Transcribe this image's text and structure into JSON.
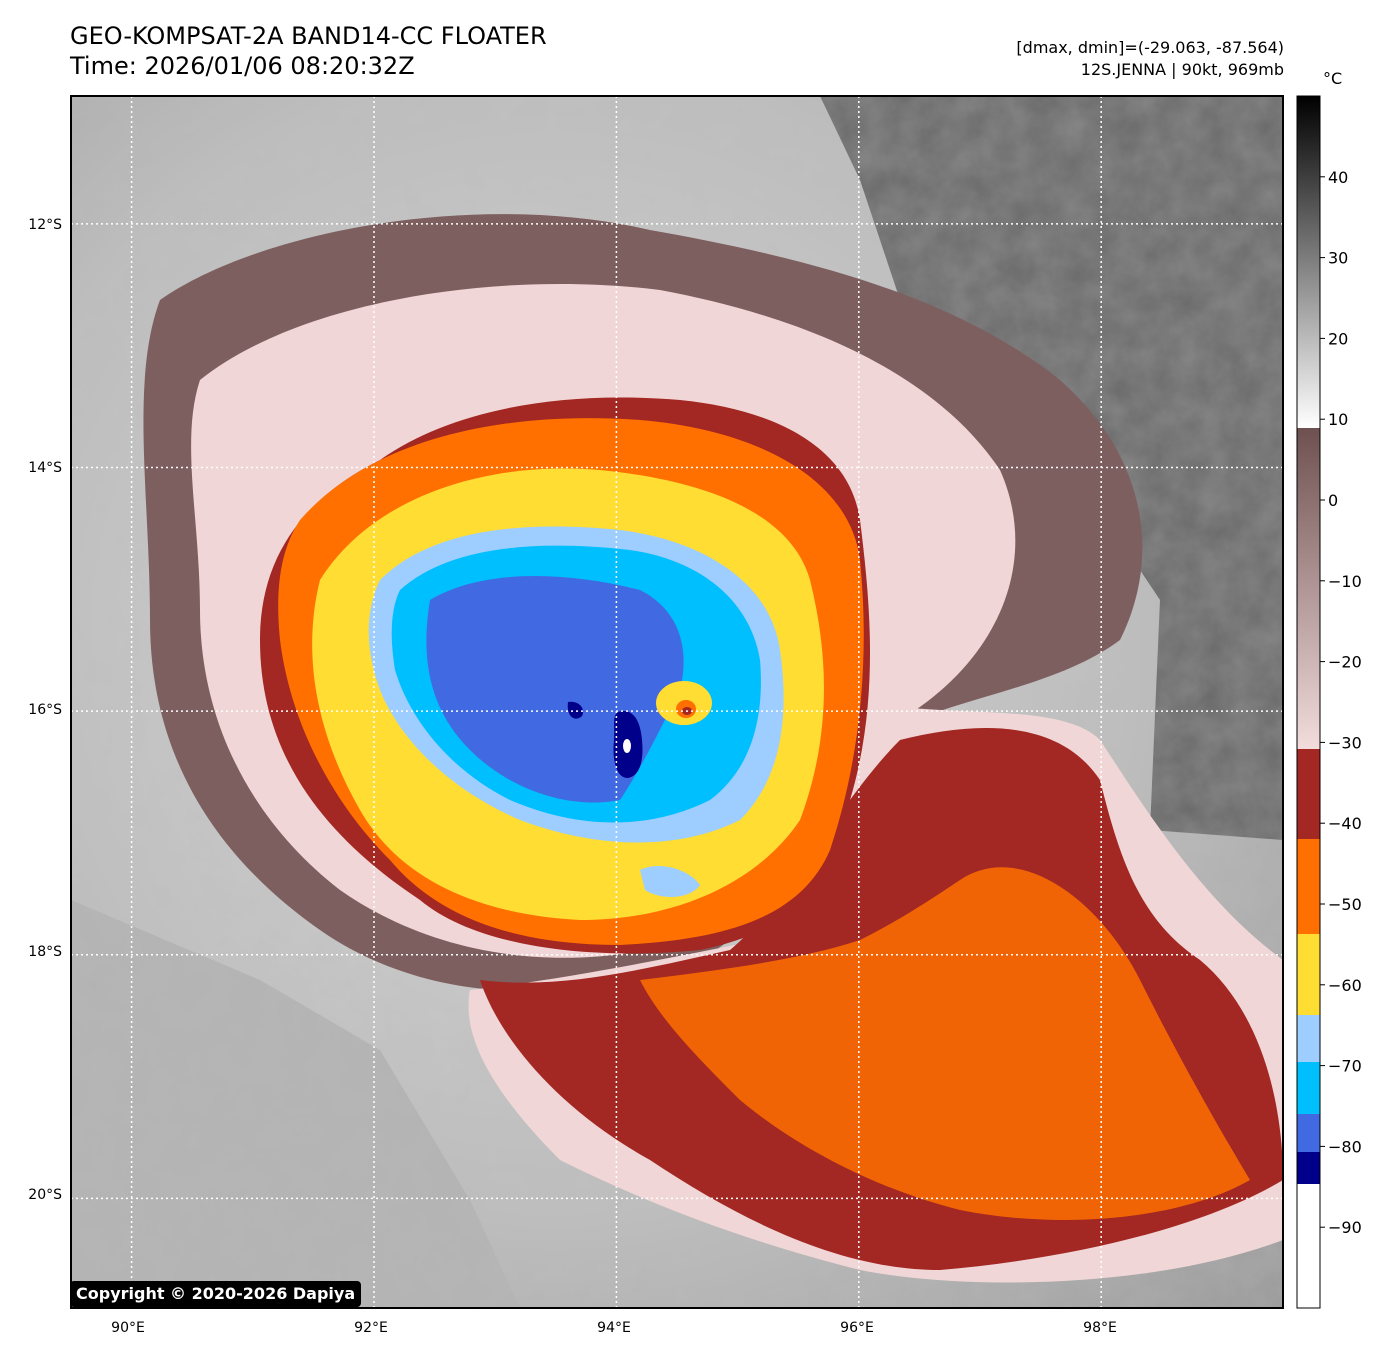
{
  "header": {
    "title_line1": "GEO-KOMPSAT-2A BAND14-CC FLOATER",
    "title_line2": "Time: 2026/01/06 08:20:32Z",
    "meta_line1": "[dmax, dmin]=(-29.063, -87.564)",
    "meta_line2": "12S.JENNA | 90kt, 969mb"
  },
  "map": {
    "lat_labels": [
      "12°S",
      "14°S",
      "16°S",
      "18°S",
      "20°S"
    ],
    "lon_labels": [
      "90°E",
      "92°E",
      "94°E",
      "96°E",
      "98°E"
    ],
    "lat_range": [
      -20.9,
      -10.95
    ],
    "lon_range": [
      89.5,
      99.5
    ]
  },
  "colorbar": {
    "unit": "°C",
    "ticks": [
      "40",
      "30",
      "20",
      "10",
      "0",
      "−10",
      "−20",
      "−30",
      "−40",
      "−50",
      "−60",
      "−70",
      "−80",
      "−90"
    ],
    "range": [
      -100,
      50
    ],
    "colors": {
      "gray_dark": "#000000",
      "gray_light": "#ffffff",
      "brown": "#6e5050",
      "pink": "#f2dcdc",
      "dark_red": "#a32722",
      "orange": "#ff7000",
      "yellow": "#ffdd33",
      "light_blue": "#9ecdff",
      "cyan": "#00bfff",
      "blue": "#4169e1",
      "navy": "#00008b",
      "white": "#ffffff"
    }
  },
  "footer": {
    "copyright": "Copyright © 2020-2026 Dapiya"
  }
}
